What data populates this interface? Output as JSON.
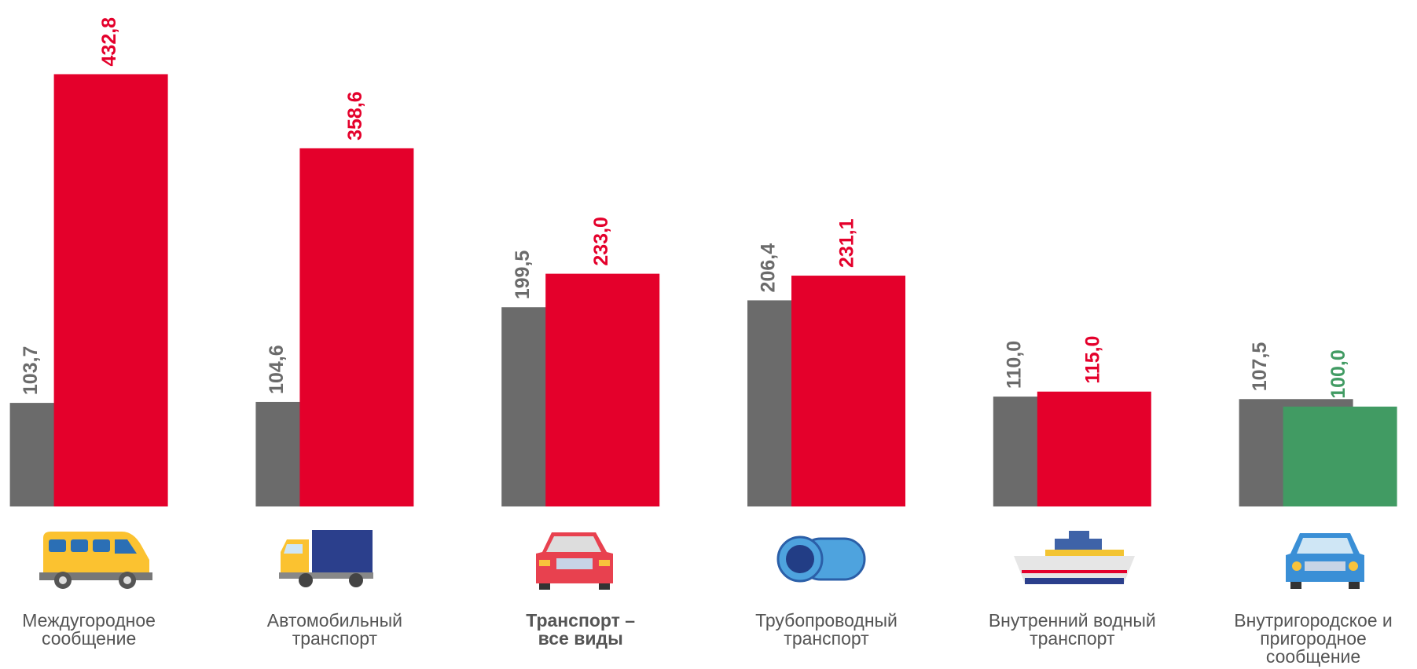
{
  "chart_data": {
    "type": "bar",
    "categories": [
      "Междугородное\nсообщение",
      "Автомобильный\nтранспорт",
      "Транспорт –\nвсе виды",
      "Трубопроводный\nтранспорт",
      "Внутренний водный\nтранспорт",
      "Внутригородское и\nпригородное\nсообщение"
    ],
    "series": [
      {
        "color": "#6b6b6b",
        "values": [
          103.7,
          104.6,
          199.5,
          206.4,
          110.0,
          107.5
        ],
        "value_labels": [
          "103,7",
          "104,6",
          "199,5",
          "206,4",
          "110,0",
          "107,5"
        ]
      },
      {
        "color": "#e4002b",
        "colors": [
          "#e4002b",
          "#e4002b",
          "#e4002b",
          "#e4002b",
          "#e4002b",
          "#419b63"
        ],
        "values": [
          432.8,
          358.6,
          233.0,
          231.1,
          115.0,
          100.0
        ],
        "value_labels": [
          "432,8",
          "358,6",
          "233,0",
          "231,1",
          "115,0",
          "100,0"
        ]
      }
    ],
    "ylim": [
      0,
      500
    ],
    "bold_category": 2
  }
}
